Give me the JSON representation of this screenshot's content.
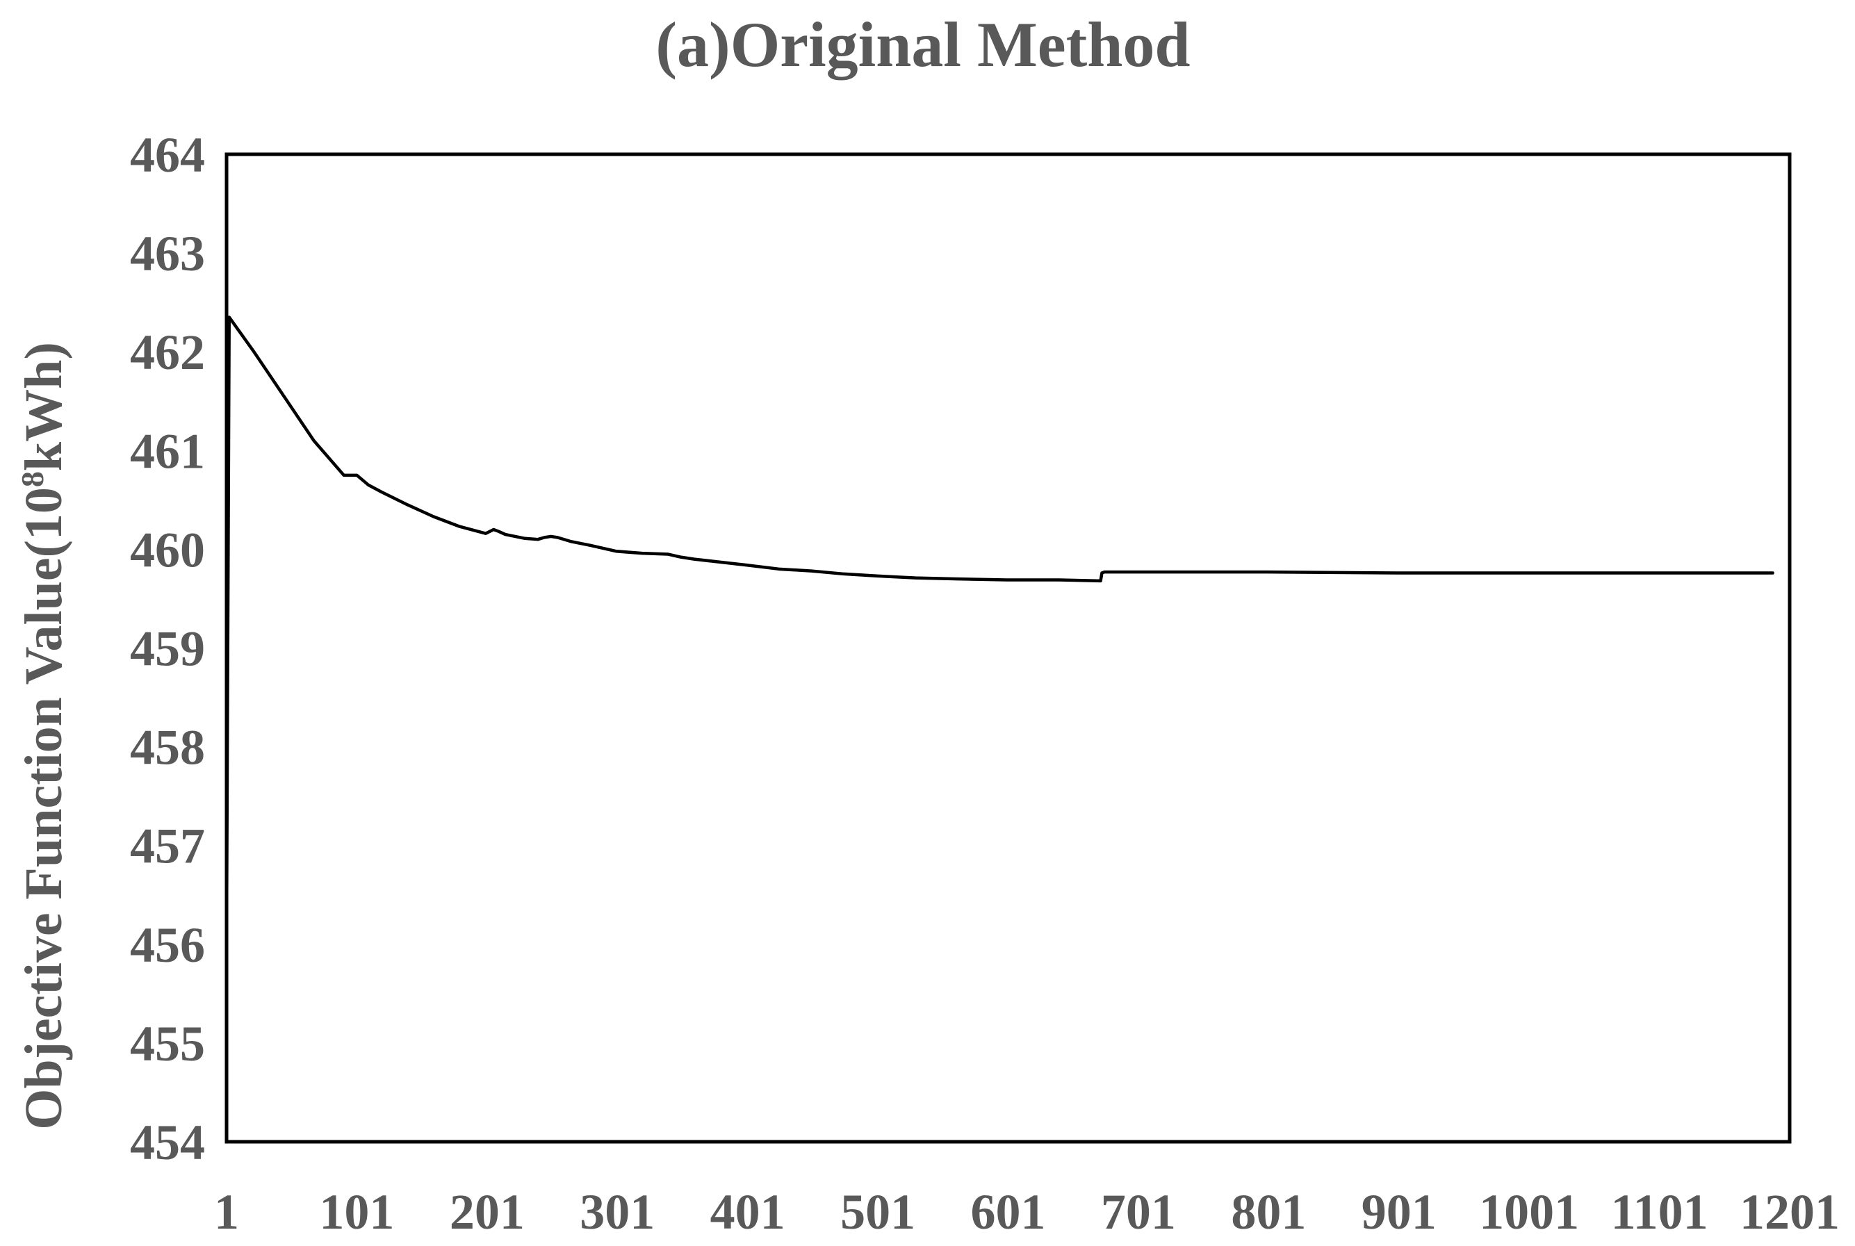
{
  "chart_data": {
    "type": "line",
    "title": "(a)Original Method",
    "ylabel_main": "Objective Function Value(10",
    "ylabel_sup": "8",
    "ylabel_unit": "kWh)",
    "xlabel": "",
    "x_tick_labels": [
      "1",
      "101",
      "201",
      "301",
      "401",
      "501",
      "601",
      "701",
      "801",
      "901",
      "1001",
      "1101",
      "1201"
    ],
    "y_tick_labels": [
      "454",
      "455",
      "456",
      "457",
      "458",
      "459",
      "460",
      "461",
      "462",
      "463",
      "464"
    ],
    "xlim": [
      1,
      1201
    ],
    "ylim": [
      454,
      464
    ],
    "grid": false,
    "legend": "none",
    "series": [
      {
        "color": "#000000",
        "x": [
          1,
          3,
          22,
          45,
          68,
          91,
          101,
          110,
          120,
          140,
          160,
          180,
          200,
          206,
          210,
          215,
          230,
          240,
          245,
          250,
          255,
          265,
          280,
          300,
          320,
          340,
          350,
          360,
          380,
          400,
          425,
          450,
          475,
          500,
          530,
          560,
          600,
          640,
          672,
          673,
          675,
          700,
          750,
          800,
          900,
          1000,
          1100,
          1188
        ],
        "y": [
          456.1,
          462.35,
          462.0,
          461.55,
          461.1,
          460.75,
          460.75,
          460.65,
          460.58,
          460.45,
          460.33,
          460.23,
          460.16,
          460.2,
          460.18,
          460.15,
          460.11,
          460.1,
          460.12,
          460.13,
          460.12,
          460.08,
          460.04,
          459.98,
          459.96,
          459.95,
          459.92,
          459.9,
          459.87,
          459.84,
          459.8,
          459.78,
          459.75,
          459.73,
          459.71,
          459.7,
          459.69,
          459.69,
          459.68,
          459.76,
          459.77,
          459.77,
          459.77,
          459.77,
          459.76,
          459.76,
          459.76,
          459.76
        ]
      }
    ]
  }
}
